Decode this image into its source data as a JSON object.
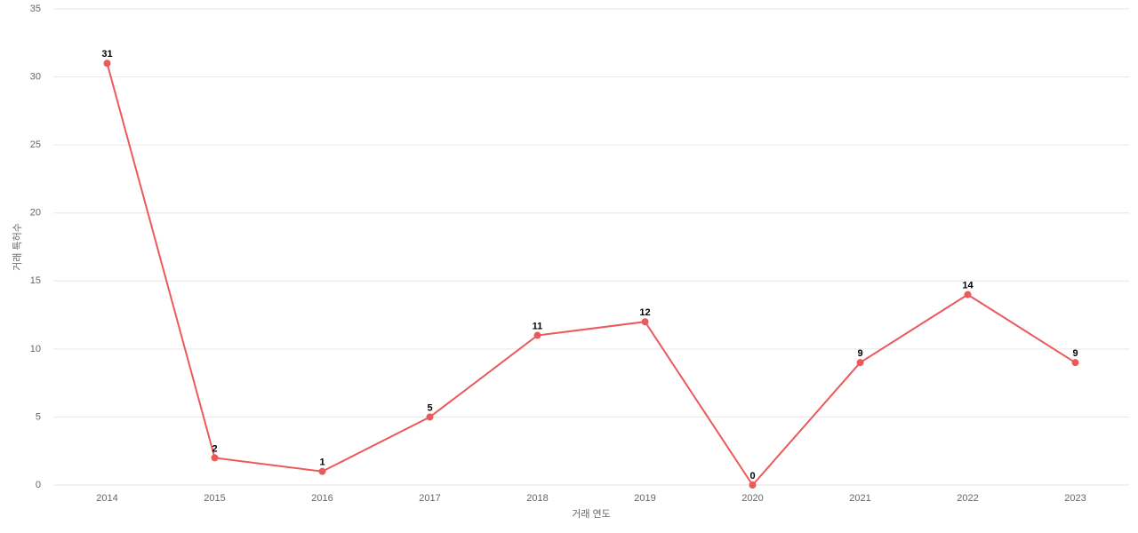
{
  "chart_data": {
    "type": "line",
    "categories": [
      "2014",
      "2015",
      "2016",
      "2017",
      "2018",
      "2019",
      "2020",
      "2021",
      "2022",
      "2023"
    ],
    "series": [
      {
        "color": "#eb5a5a",
        "values": [
          31,
          2,
          1,
          5,
          11,
          12,
          0,
          9,
          14,
          9
        ]
      }
    ],
    "x_label": "거래 연도",
    "y_label": "거래 특허수",
    "ylim": [
      0,
      35
    ],
    "yticks": [
      0,
      5,
      10,
      15,
      20,
      25,
      30,
      35
    ],
    "grid": true
  }
}
